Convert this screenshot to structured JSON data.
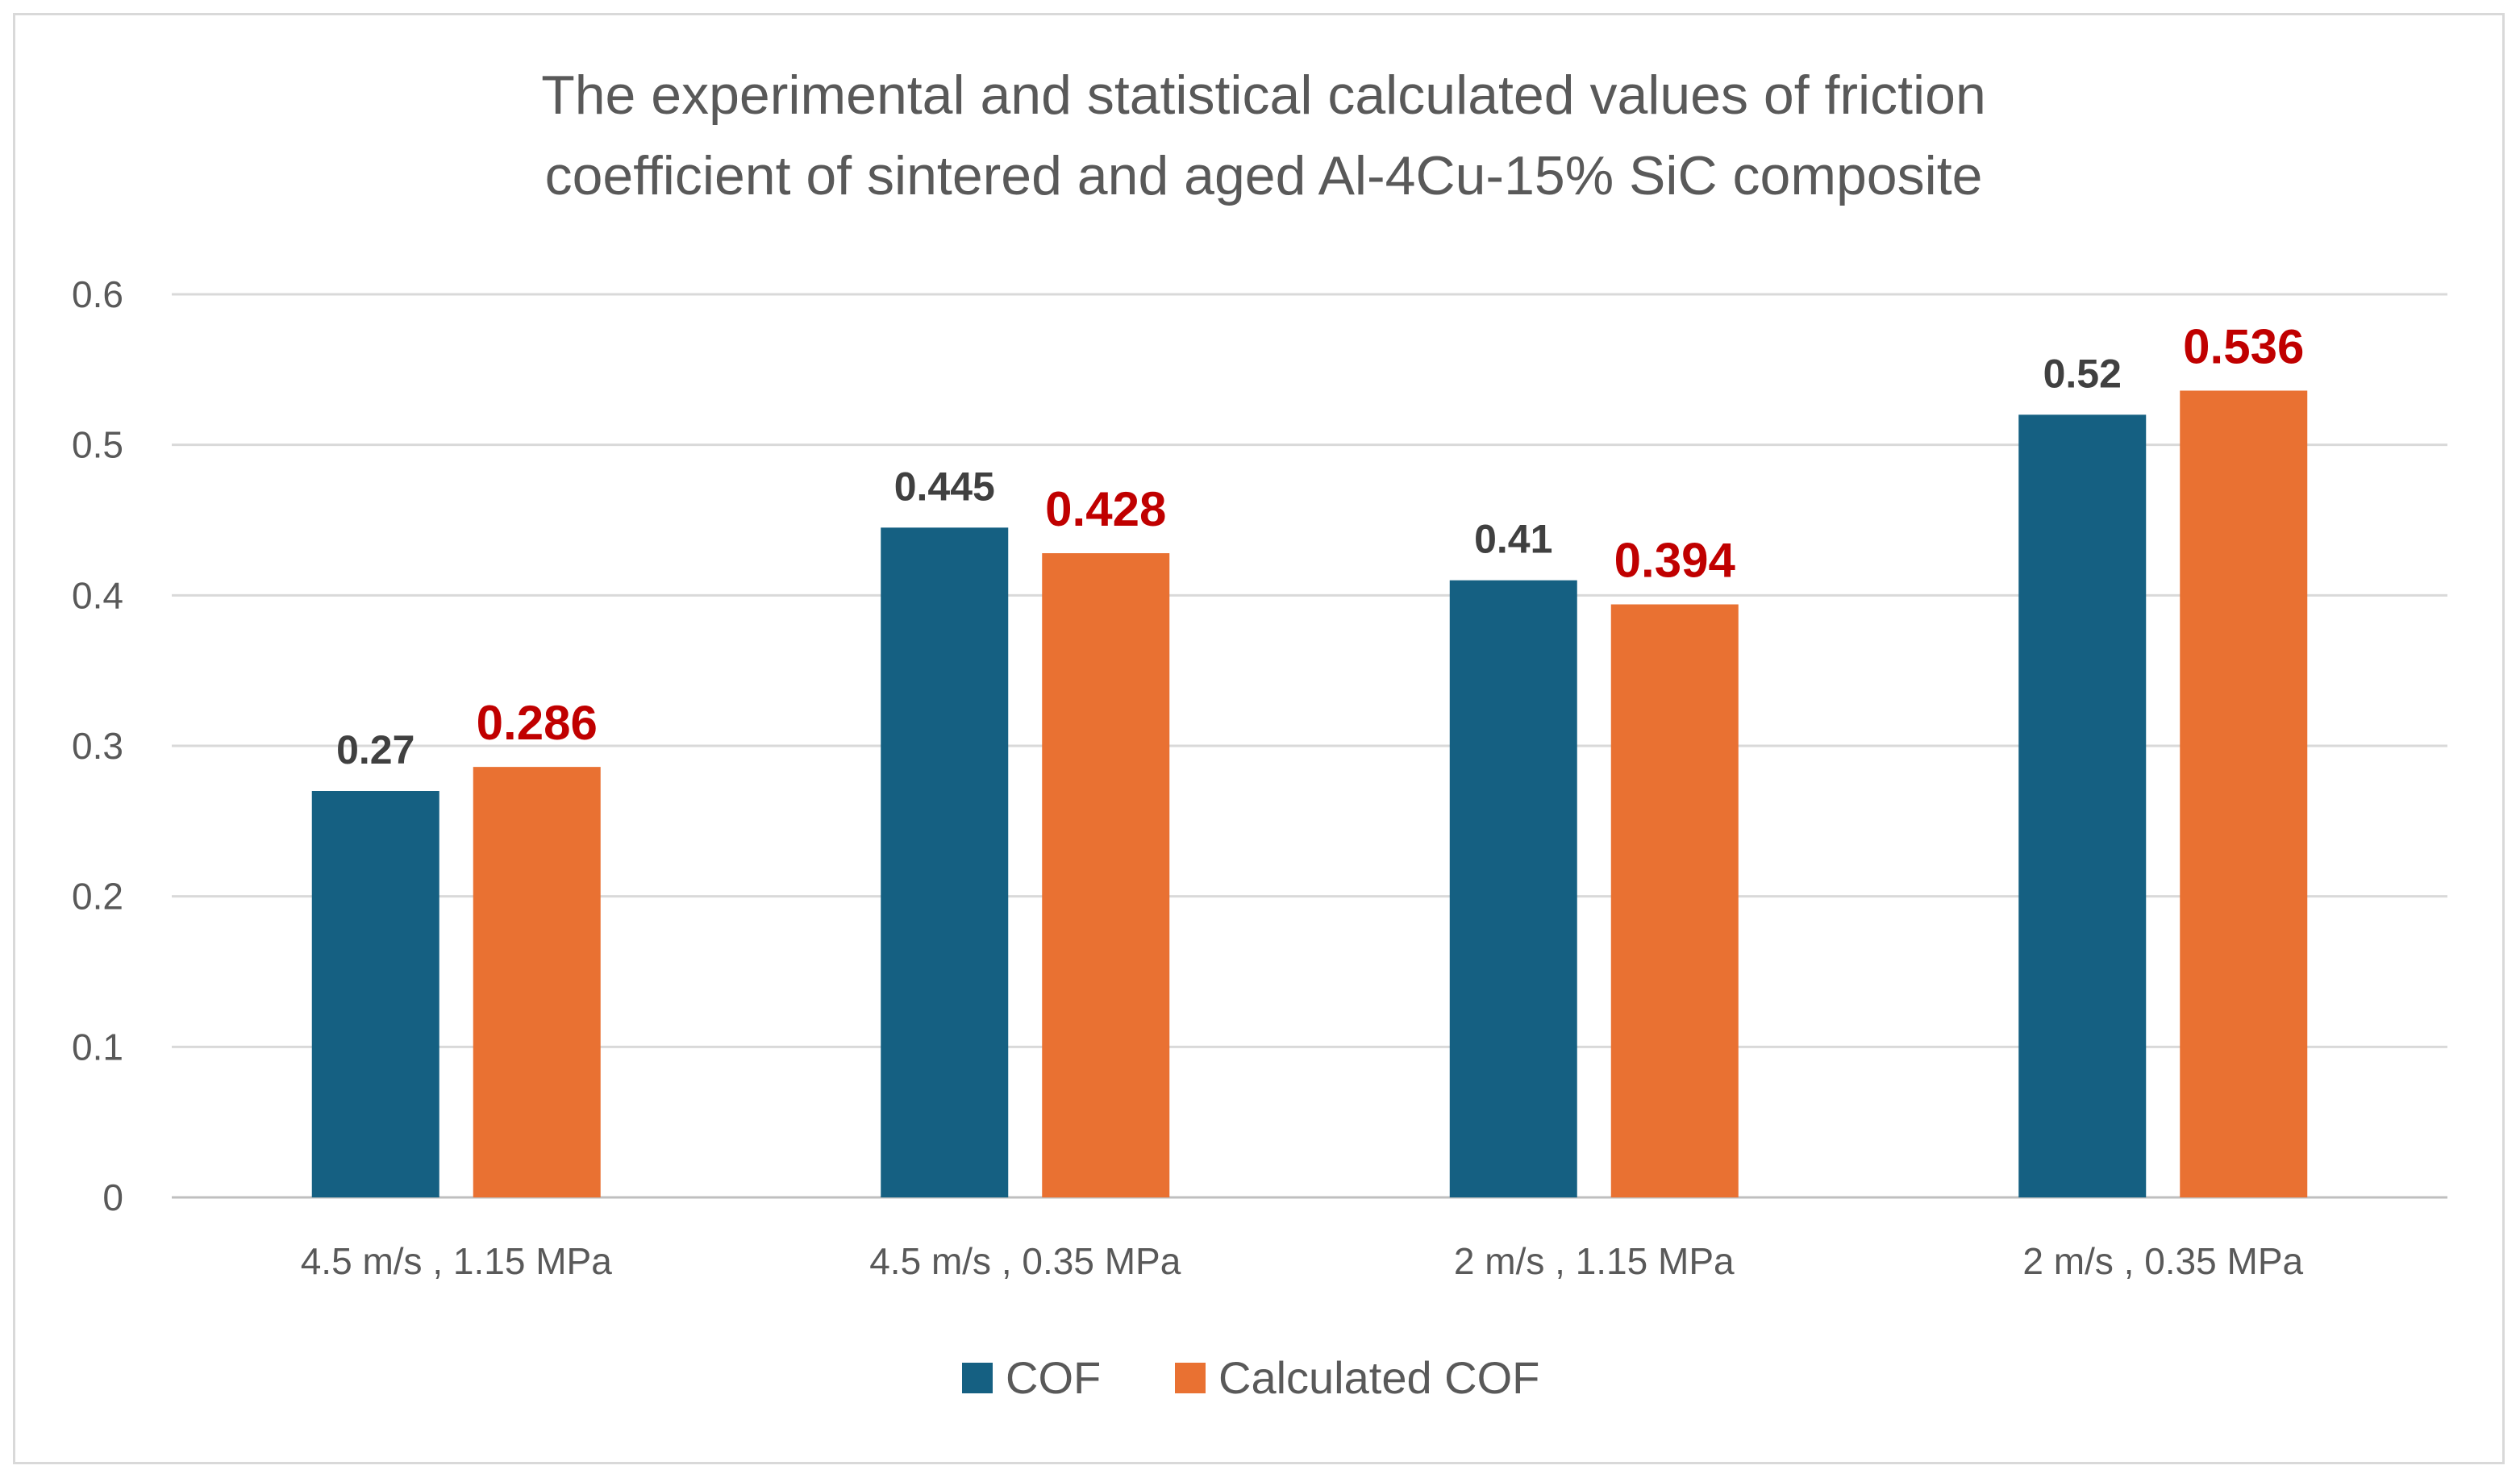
{
  "chart_data": {
    "type": "bar",
    "title_lines": [
      "The experimental and statistical calculated values of friction",
      "coefficient of sintered and aged Al-4Cu-15% SiC composite"
    ],
    "categories": [
      "4.5 m/s , 1.15 MPa",
      "4.5 m/s , 0.35 MPa",
      "2 m/s , 1.15 MPa",
      "2 m/s , 0.35 MPa"
    ],
    "series": [
      {
        "name": "COF",
        "values": [
          0.27,
          0.445,
          0.41,
          0.52
        ],
        "labels": [
          "0.27",
          "0.445",
          "0.41",
          "0.52"
        ],
        "color": "#156082",
        "label_color": "#404040"
      },
      {
        "name": "Calculated COF",
        "values": [
          0.286,
          0.428,
          0.394,
          0.536
        ],
        "labels": [
          "0.286",
          "0.428",
          "0.394",
          "0.536"
        ],
        "color": "#e97132",
        "label_color": "#c00000"
      }
    ],
    "yticks": [
      "0",
      "0.1",
      "0.2",
      "0.3",
      "0.4",
      "0.5",
      "0.6"
    ],
    "ylim": [
      0,
      0.6
    ],
    "grid": true,
    "legend_position": "bottom",
    "xlabel": "",
    "ylabel": ""
  }
}
